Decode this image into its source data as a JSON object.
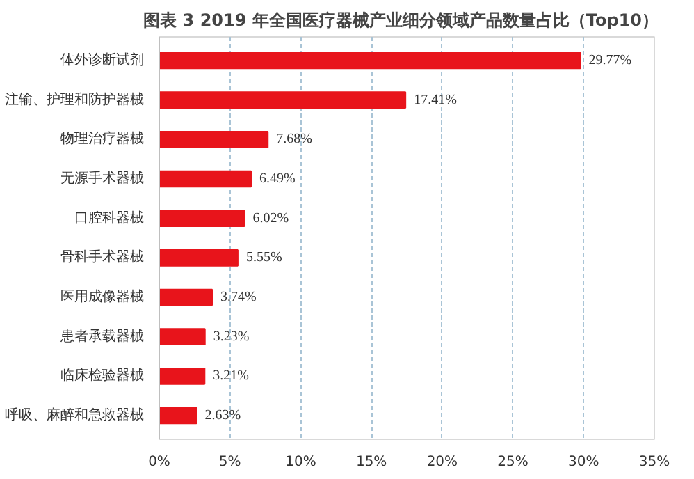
{
  "chart_data": {
    "type": "bar",
    "orientation": "horizontal",
    "title": "图表 3   2019 年全国医疗器械产业细分领域产品数量占比（Top10）",
    "categories": [
      "体外诊断试剂",
      "注输、护理和防护器械",
      "物理治疗器械",
      "无源手术器械",
      "口腔科器械",
      "骨科手术器械",
      "医用成像器械",
      "患者承载器械",
      "临床检验器械",
      "呼吸、麻醉和急救器械"
    ],
    "values": [
      29.77,
      17.41,
      7.68,
      6.49,
      6.02,
      5.55,
      3.74,
      3.23,
      3.21,
      2.63
    ],
    "value_labels": [
      "29.77%",
      "17.41%",
      "7.68%",
      "6.49%",
      "6.02%",
      "5.55%",
      "3.74%",
      "3.23%",
      "3.21%",
      "2.63%"
    ],
    "color": "#e8141b",
    "xlim": [
      0,
      35
    ],
    "xticks": [
      {
        "value": 0,
        "label": "0%"
      },
      {
        "value": 5,
        "label": "5%"
      },
      {
        "value": 10,
        "label": "10%"
      },
      {
        "value": 15,
        "label": "15%"
      },
      {
        "value": 20,
        "label": "20%"
      },
      {
        "value": 25,
        "label": "25%"
      },
      {
        "value": 30,
        "label": "30%"
      },
      {
        "value": 35,
        "label": "35%"
      }
    ],
    "grid": "x"
  }
}
